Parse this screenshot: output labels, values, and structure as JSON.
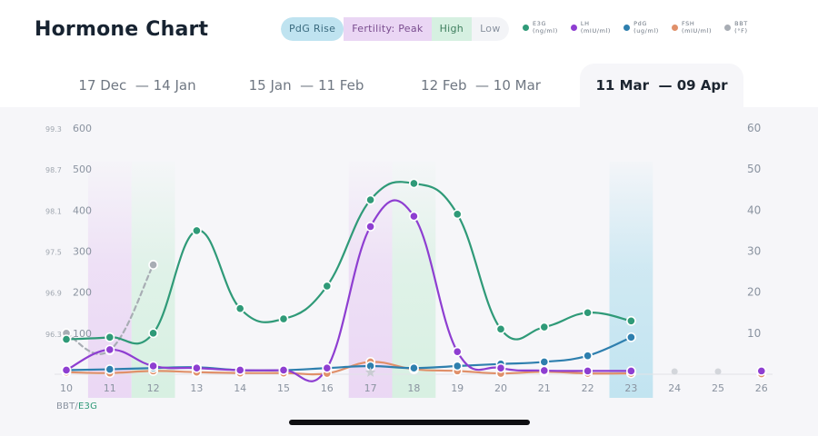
{
  "header": {
    "title": "Hormone Chart"
  },
  "phase_pills": [
    {
      "label": "PdG Rise",
      "color": "#bfe3f0"
    },
    {
      "label": "Fertility: Peak",
      "color": "#ead6f4"
    },
    {
      "label": "High",
      "color": "#d6f0e1"
    },
    {
      "label": "Low",
      "color": "#f3f4f7"
    }
  ],
  "legend": [
    {
      "name": "E3G",
      "unit": "(ng/ml)",
      "color": "#2f9a78"
    },
    {
      "name": "LH",
      "unit": "(mIU/ml)",
      "color": "#8e3ed1"
    },
    {
      "name": "PdG",
      "unit": "(ug/ml)",
      "color": "#2e7fae"
    },
    {
      "name": "FSH",
      "unit": "(mIU/ml)",
      "color": "#e0906a"
    },
    {
      "name": "BBT",
      "unit": "(°F)",
      "color": "#a8adb4"
    }
  ],
  "tabs": [
    {
      "start": "17 Dec",
      "end": "14 Jan",
      "active": false
    },
    {
      "start": "15 Jan",
      "end": "11 Feb",
      "active": false
    },
    {
      "start": "12 Feb",
      "end": "10 Mar",
      "active": false
    },
    {
      "start": "11 Mar",
      "end": "09 Apr",
      "active": true
    }
  ],
  "footer": {
    "bbt_label": "BBT/",
    "e3g_label": "E3G"
  },
  "chart_data": {
    "type": "line",
    "x": [
      10,
      11,
      12,
      13,
      14,
      15,
      16,
      17,
      18,
      19,
      20,
      21,
      22,
      23,
      24,
      25,
      26
    ],
    "xlim": [
      10,
      26
    ],
    "left_axis_bbt": {
      "ticks": [
        "96.3",
        "96.9",
        "97.5",
        "98.1",
        "98.7",
        "99.3"
      ]
    },
    "left_axis_e3g": {
      "ticks": [
        "100",
        "200",
        "300",
        "400",
        "500",
        "600"
      ],
      "ylim": [
        0,
        600
      ]
    },
    "right_axis": {
      "ticks": [
        "10",
        "20",
        "30",
        "40",
        "50",
        "60"
      ],
      "ylim": [
        0,
        60
      ]
    },
    "phase_bands": [
      {
        "phase": "Fertility: Peak",
        "from": 10.5,
        "to": 11.5,
        "color": "#ead6f4"
      },
      {
        "phase": "High",
        "from": 11.5,
        "to": 12.5,
        "color": "#d6f0e1"
      },
      {
        "phase": "Fertility: Peak",
        "from": 16.5,
        "to": 17.5,
        "color": "#ead6f4"
      },
      {
        "phase": "High",
        "from": 17.5,
        "to": 18.5,
        "color": "#d6f0e1"
      },
      {
        "phase": "PdG Rise",
        "from": 22.5,
        "to": 23.5,
        "color": "#bfe3f0"
      }
    ],
    "series": [
      {
        "name": "E3G",
        "axis": "left",
        "color": "#2f9a78",
        "x": [
          10,
          11,
          12,
          13,
          14,
          15,
          16,
          17,
          18,
          19,
          20,
          21,
          22,
          23
        ],
        "values": [
          85,
          90,
          100,
          350,
          160,
          135,
          215,
          425,
          465,
          390,
          110,
          115,
          150,
          130
        ]
      },
      {
        "name": "LH",
        "axis": "right",
        "color": "#8e3ed1",
        "x": [
          10,
          11,
          12,
          13,
          14,
          15,
          16,
          17,
          18,
          19,
          20,
          21,
          22,
          23,
          26
        ],
        "values": [
          1,
          6,
          2,
          1.5,
          1,
          1,
          1.5,
          36,
          38.5,
          5.5,
          1.5,
          0.9,
          0.8,
          0.8,
          0.8
        ]
      },
      {
        "name": "PdG",
        "axis": "right",
        "color": "#2e7fae",
        "x": [
          10,
          11,
          12,
          13,
          14,
          15,
          16,
          17,
          18,
          19,
          20,
          21,
          22,
          23
        ],
        "values": [
          1,
          1.2,
          1.5,
          1.7,
          1,
          1,
          1.5,
          2,
          1.5,
          2,
          2.5,
          3,
          4.5,
          9
        ]
      },
      {
        "name": "FSH",
        "axis": "right",
        "color": "#e0906a",
        "x": [
          10,
          11,
          12,
          13,
          14,
          15,
          16,
          17,
          18,
          19,
          20,
          21,
          22,
          23,
          26
        ],
        "values": [
          0.5,
          0.3,
          0.8,
          0.5,
          0.3,
          0.3,
          0.2,
          3,
          1.2,
          0.8,
          0.2,
          0.6,
          0.2,
          0.2,
          0.1
        ]
      },
      {
        "name": "BBT",
        "axis": "left-bbt",
        "color": "#a8adb4",
        "dashed": true,
        "x": [
          10,
          11,
          12
        ],
        "values": [
          96.3,
          96.05,
          97.3
        ]
      }
    ],
    "empty_days": [
      24,
      25,
      26
    ],
    "star_marker_day": 17
  }
}
